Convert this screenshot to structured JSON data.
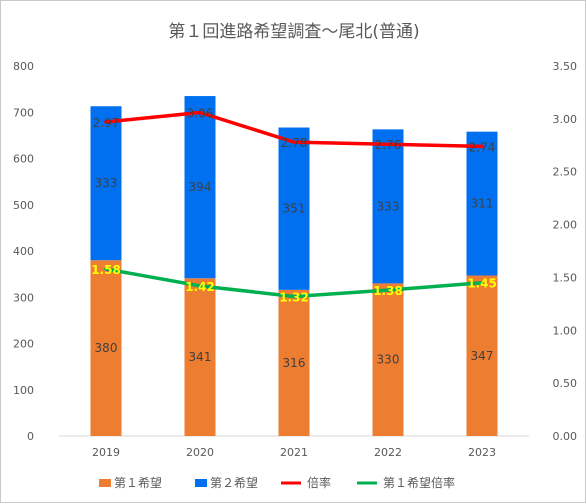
{
  "chart_data": {
    "type": "bar",
    "title": "第１回進路希望調査～尾北(普通)",
    "categories": [
      "2019",
      "2020",
      "2021",
      "2022",
      "2023"
    ],
    "series": [
      {
        "name": "第１希望",
        "kind": "bar",
        "axis": "left",
        "color": "#ed7d31",
        "values": [
          380,
          341,
          316,
          330,
          347
        ]
      },
      {
        "name": "第２希望",
        "kind": "bar",
        "axis": "left",
        "color": "#0070f0",
        "values": [
          333,
          394,
          351,
          333,
          311
        ]
      },
      {
        "name": "倍率",
        "kind": "line",
        "axis": "right",
        "color": "#ff0000",
        "values": [
          2.97,
          3.06,
          2.78,
          2.76,
          2.74
        ],
        "labels": [
          "2.97",
          "3.06",
          "2.78",
          "2.76",
          "2.74"
        ]
      },
      {
        "name": "第１希望倍率",
        "kind": "line",
        "axis": "right",
        "color": "#00b050",
        "values": [
          1.58,
          1.42,
          1.32,
          1.38,
          1.45
        ],
        "labels": [
          "1.58",
          "1.42",
          "1.32",
          "1.38",
          "1.45"
        ]
      }
    ],
    "y_left": {
      "min": 0,
      "max": 800,
      "ticks": [
        "0",
        "100",
        "200",
        "300",
        "400",
        "500",
        "600",
        "700",
        "800"
      ]
    },
    "y_right": {
      "min": 0,
      "max": 3.5,
      "ticks": [
        "0.00",
        "0.50",
        "1.00",
        "1.50",
        "2.00",
        "2.50",
        "3.00",
        "3.50"
      ]
    },
    "legend_position": "bottom",
    "grid": false
  }
}
